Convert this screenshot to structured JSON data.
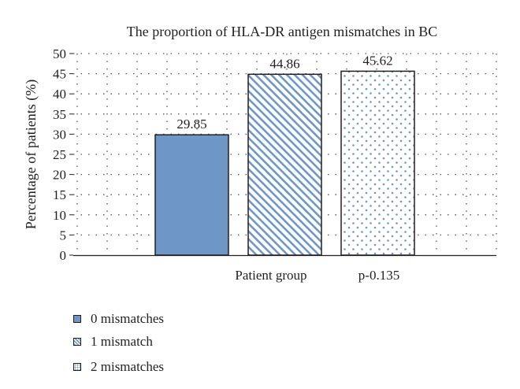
{
  "chart_data": {
    "type": "bar",
    "title": "The proportion of HLA-DR antigen mismatches in BC",
    "ylabel": "Percentage of patients (%)",
    "xlabel": "Patient group",
    "annotation": "p-0.135",
    "ylim": [
      0,
      50
    ],
    "yticks": [
      "0",
      "5",
      "10",
      "15",
      "20",
      "25",
      "30",
      "35",
      "40",
      "45",
      "50"
    ],
    "grid": "dotted horizontal and vertical",
    "legend_position": "bottom-left",
    "series": [
      {
        "name": "0 mismatches",
        "value": 29.85,
        "label": "29.85",
        "fill": "solid",
        "color": "#6e97c8"
      },
      {
        "name": "1 mismatch",
        "value": 44.86,
        "label": "44.86",
        "fill": "diagonal-stripes",
        "color": "#6e97c8"
      },
      {
        "name": "2 mismatches",
        "value": 45.62,
        "label": "45.62",
        "fill": "dots",
        "color": "#6e97c8"
      }
    ]
  }
}
